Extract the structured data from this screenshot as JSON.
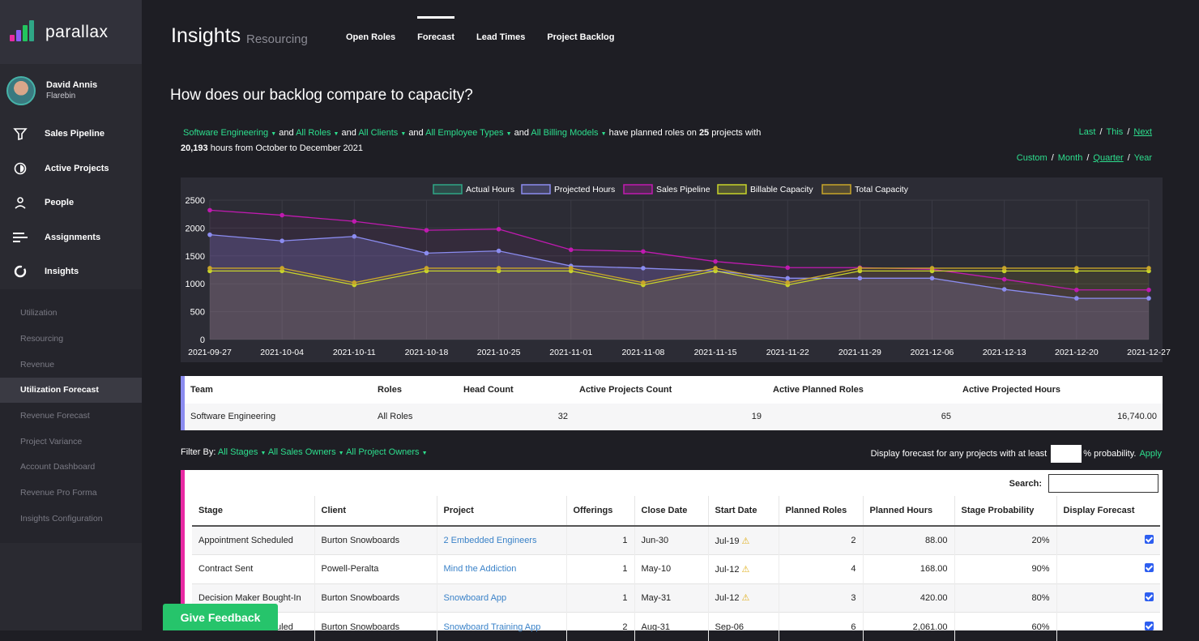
{
  "brand": {
    "name": "parallax"
  },
  "user": {
    "name": "David Annis",
    "org": "Flarebin"
  },
  "nav": [
    {
      "label": "Sales Pipeline",
      "icon": "funnel-icon"
    },
    {
      "label": "Active Projects",
      "icon": "progress-icon"
    },
    {
      "label": "People",
      "icon": "person-icon"
    },
    {
      "label": "Assignments",
      "icon": "bars-icon"
    },
    {
      "label": "Insights",
      "icon": "circle-icon"
    }
  ],
  "subnav": [
    "Utilization",
    "Resourcing",
    "Revenue",
    "Utilization Forecast",
    "Revenue Forecast",
    "Project Variance",
    "Account Dashboard",
    "Revenue Pro Forma",
    "Insights Configuration"
  ],
  "header": {
    "title": "Insights",
    "subtitle": "Resourcing"
  },
  "tabs": [
    "Open Roles",
    "Forecast",
    "Lead Times",
    "Project Backlog"
  ],
  "question": "How does our backlog compare to capacity?",
  "filters": {
    "team": "Software Engineering",
    "roles": "All Roles",
    "clients": "All Clients",
    "employee_types": "All Employee Types",
    "billing_models": "All Billing Models",
    "and": "and",
    "tail": "have planned roles on",
    "projects": "25",
    "projects_with": "projects with",
    "hours": "20,193",
    "hours_tail": "hours from October to December 2021"
  },
  "period": {
    "last": "Last",
    "this": "This",
    "next": "Next",
    "custom": "Custom",
    "month": "Month",
    "quarter": "Quarter",
    "year": "Year"
  },
  "colors": {
    "accent": "#2ddf8e",
    "actual": "#2fa686",
    "projected": "#8b8cf0",
    "pipeline": "#c01ab0",
    "billable": "#c8d42a",
    "total": "#c8a52a"
  },
  "chart_data": {
    "type": "line",
    "x": [
      "2021-09-27",
      "2021-10-04",
      "2021-10-11",
      "2021-10-18",
      "2021-10-25",
      "2021-11-01",
      "2021-11-08",
      "2021-11-15",
      "2021-11-22",
      "2021-11-29",
      "2021-12-06",
      "2021-12-13",
      "2021-12-20",
      "2021-12-27"
    ],
    "ylim": [
      0,
      2500
    ],
    "yticks": [
      0,
      500,
      1000,
      1500,
      2000,
      2500
    ],
    "legend": [
      "Actual Hours",
      "Projected Hours",
      "Sales Pipeline",
      "Billable Capacity",
      "Total Capacity"
    ],
    "series": [
      {
        "name": "Projected Hours",
        "values": [
          1880,
          1770,
          1850,
          1550,
          1590,
          1320,
          1280,
          1230,
          1100,
          1100,
          1100,
          900,
          740,
          740
        ]
      },
      {
        "name": "Sales Pipeline",
        "values": [
          2320,
          2230,
          2120,
          1960,
          1980,
          1610,
          1580,
          1400,
          1290,
          1290,
          1260,
          1080,
          890,
          890
        ]
      },
      {
        "name": "Billable Capacity",
        "values": [
          1230,
          1230,
          980,
          1230,
          1230,
          1230,
          980,
          1230,
          980,
          1230,
          1230,
          1230,
          1230,
          1230
        ]
      },
      {
        "name": "Total Capacity",
        "values": [
          1280,
          1280,
          1020,
          1280,
          1280,
          1280,
          1020,
          1280,
          1020,
          1280,
          1280,
          1280,
          1280,
          1280
        ]
      }
    ]
  },
  "team_table": {
    "headers": [
      "Team",
      "Roles",
      "Head Count",
      "Active Projects Count",
      "Active Planned Roles",
      "Active Projected Hours"
    ],
    "row": [
      "Software Engineering",
      "All Roles",
      "32",
      "19",
      "65",
      "16,740.00"
    ]
  },
  "filterby": {
    "label": "Filter By:",
    "stages": "All Stages",
    "sales_owners": "All Sales Owners",
    "project_owners": "All Project Owners"
  },
  "probability": {
    "pre": "Display forecast for any projects with at least",
    "post": "% probability.",
    "apply": "Apply"
  },
  "search_label": "Search:",
  "projects": {
    "headers": [
      "Stage",
      "Client",
      "Project",
      "Offerings",
      "Close Date",
      "Start Date",
      "Planned Roles",
      "Planned Hours",
      "Stage Probability",
      "Display Forecast"
    ],
    "rows": [
      [
        "Appointment Scheduled",
        "Burton Snowboards",
        "2 Embedded Engineers",
        "1",
        "Jun-30",
        "Jul-19",
        "2",
        "88.00",
        "20%"
      ],
      [
        "Contract Sent",
        "Powell-Peralta",
        "Mind the Addiction",
        "1",
        "May-10",
        "Jul-12",
        "4",
        "168.00",
        "90%"
      ],
      [
        "Decision Maker Bought-In",
        "Burton Snowboards",
        "Snowboard App",
        "1",
        "May-31",
        "Jul-12",
        "3",
        "420.00",
        "80%"
      ],
      [
        "Appointment Scheduled",
        "Burton Snowboards",
        "Snowboard Training App",
        "2",
        "Aug-31",
        "Sep-06",
        "6",
        "2,061.00",
        "60%"
      ]
    ]
  },
  "feedback": "Give Feedback"
}
